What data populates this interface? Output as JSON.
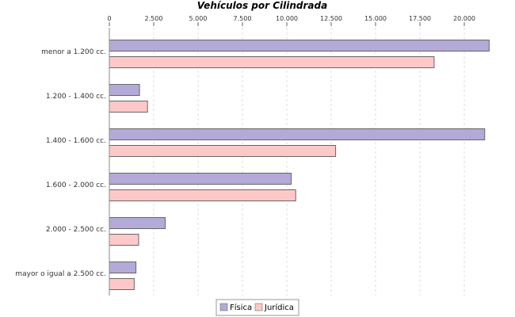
{
  "chart_data": {
    "type": "bar",
    "orientation": "horizontal",
    "title": "Vehículos por Cilindrada",
    "xlabel": "",
    "ylabel": "",
    "xlim": [
      0,
      22500
    ],
    "ticks": [
      0,
      2500,
      5000,
      7500,
      10000,
      12500,
      15000,
      17500,
      20000
    ],
    "tick_labels": [
      "0",
      "2.500",
      "5.000",
      "7.500",
      "10.000",
      "12.500",
      "15.000",
      "17.500",
      "20.000"
    ],
    "categories": [
      "menor a 1.200 cc.",
      "1.200 - 1.400 cc.",
      "1.400 - 1.600 cc.",
      "1.600 - 2.000 cc.",
      "2.000 - 2.500 cc.",
      "mayor o igual a 2.500 cc."
    ],
    "series": [
      {
        "name": "Física",
        "color": "#b4aad8",
        "values": [
          21400,
          1700,
          21150,
          10250,
          3150,
          1500
        ]
      },
      {
        "name": "Jurídica",
        "color": "#ffc8c8",
        "values": [
          18300,
          2150,
          12750,
          10500,
          1650,
          1400
        ]
      }
    ],
    "grid": "vertical dashed",
    "legend_position": "bottom"
  }
}
